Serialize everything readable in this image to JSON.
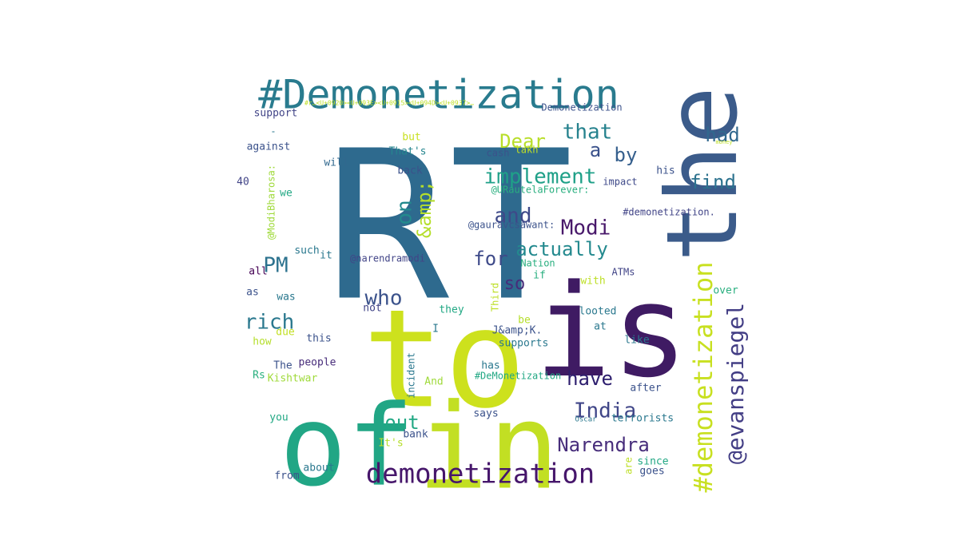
{
  "word_cloud": {
    "words": [
      {
        "text": "RT",
        "color": "#2e6a8e"
      },
      {
        "text": "the",
        "color": "#3b5b8a"
      },
      {
        "text": "to",
        "color": "#cde11d"
      },
      {
        "text": "is",
        "color": "#3f1b63"
      },
      {
        "text": "of",
        "color": "#21a685"
      },
      {
        "text": "in",
        "color": "#c2df23"
      },
      {
        "text": "#Demonetization",
        "color": "#297b8e"
      },
      {
        "text": "demonetization",
        "color": "#46166b"
      },
      {
        "text": "#demonetization",
        "color": "#c8e020"
      },
      {
        "text": "@evanspiegel",
        "color": "#433e85"
      },
      {
        "text": "that",
        "color": "#26828e"
      },
      {
        "text": "Dear",
        "color": "#b8de29"
      },
      {
        "text": "implement",
        "color": "#1fa088"
      },
      {
        "text": "and",
        "color": "#3e4989"
      },
      {
        "text": "Modi",
        "color": "#48186a"
      },
      {
        "text": "actually",
        "color": "#23898e"
      },
      {
        "text": "India",
        "color": "#404688"
      },
      {
        "text": "Narendra",
        "color": "#472d7b"
      },
      {
        "text": "had",
        "color": "#31688e"
      },
      {
        "text": "find",
        "color": "#2c728e"
      },
      {
        "text": "by",
        "color": "#355f8d"
      },
      {
        "text": "a",
        "color": "#3b528b"
      },
      {
        "text": "on",
        "color": "#238a8d"
      },
      {
        "text": "&amp;",
        "color": "#b5de2b"
      },
      {
        "text": "PM",
        "color": "#2c728e"
      },
      {
        "text": "who",
        "color": "#3b528b"
      },
      {
        "text": "rich",
        "color": "#2a788e"
      },
      {
        "text": "for",
        "color": "#3e4a89"
      },
      {
        "text": "so",
        "color": "#472c7a"
      },
      {
        "text": "have",
        "color": "#2d1e6e"
      },
      {
        "text": "out",
        "color": "#22a884"
      },
      {
        "text": "support",
        "color": "#414487"
      },
      {
        "text": "Demonetization",
        "color": "#3b528b"
      },
      {
        "text": "against",
        "color": "#3b528b"
      },
      {
        "text": "but",
        "color": "#c8e020"
      },
      {
        "text": "That's",
        "color": "#25858e"
      },
      {
        "text": "cash",
        "color": "#3b528b"
      },
      {
        "text": "lakh",
        "color": "#c2df23"
      },
      {
        "text": "will",
        "color": "#31688e"
      },
      {
        "text": "back",
        "color": "#3b528b"
      },
      {
        "text": "@ModiBharosa:",
        "color": "#9fda3a"
      },
      {
        "text": "40",
        "color": "#414487"
      },
      {
        "text": "we",
        "color": "#22a884"
      },
      {
        "text": "@URautelaForever:",
        "color": "#29af7f"
      },
      {
        "text": "impact",
        "color": "#3e4989"
      },
      {
        "text": "his",
        "color": "#3b528b"
      },
      {
        "text": "#demonetization.",
        "color": "#414487"
      },
      {
        "text": "@gauravcsawant:",
        "color": "#3b528b"
      },
      {
        "text": "@narendramodi",
        "color": "#414487"
      },
      {
        "text": "such",
        "color": "#2a788e"
      },
      {
        "text": "it",
        "color": "#2a788e"
      },
      {
        "text": "all",
        "color": "#440154"
      },
      {
        "text": "Nation",
        "color": "#29af7f"
      },
      {
        "text": "if",
        "color": "#29af7f"
      },
      {
        "text": "ATMs",
        "color": "#414487"
      },
      {
        "text": "with",
        "color": "#bddf26"
      },
      {
        "text": "over",
        "color": "#29af7f"
      },
      {
        "text": "as",
        "color": "#3b528b"
      },
      {
        "text": "was",
        "color": "#2a788e"
      },
      {
        "text": "not",
        "color": "#414487"
      },
      {
        "text": "Third",
        "color": "#bddf26"
      },
      {
        "text": "they",
        "color": "#22a884"
      },
      {
        "text": "looted",
        "color": "#2a788e"
      },
      {
        "text": "be",
        "color": "#b5de2b"
      },
      {
        "text": "I",
        "color": "#2a788e"
      },
      {
        "text": "J&amp;K.",
        "color": "#3b528b"
      },
      {
        "text": "at",
        "color": "#2a788e"
      },
      {
        "text": "due",
        "color": "#c2df23"
      },
      {
        "text": "this",
        "color": "#3b528b"
      },
      {
        "text": "supports",
        "color": "#2a788e"
      },
      {
        "text": "like",
        "color": "#2a788e"
      },
      {
        "text": "how",
        "color": "#b5de2b"
      },
      {
        "text": "people",
        "color": "#472c7a"
      },
      {
        "text": "The",
        "color": "#3b528b"
      },
      {
        "text": "has",
        "color": "#2a788e"
      },
      {
        "text": "Rs",
        "color": "#29af7f"
      },
      {
        "text": "Kishtwar",
        "color": "#9fda3a"
      },
      {
        "text": "incident",
        "color": "#2a788e"
      },
      {
        "text": "#DeMonetization",
        "color": "#22a884"
      },
      {
        "text": "And",
        "color": "#9fda3a"
      },
      {
        "text": "after",
        "color": "#3b528b"
      },
      {
        "text": "you",
        "color": "#22a884"
      },
      {
        "text": "says",
        "color": "#3b528b"
      },
      {
        "text": "Oscar",
        "color": "#2a788e"
      },
      {
        "text": "terrorists",
        "color": "#2a788e"
      },
      {
        "text": "It's",
        "color": "#b5de2b"
      },
      {
        "text": "bank",
        "color": "#3b528b"
      },
      {
        "text": "are",
        "color": "#bddf26"
      },
      {
        "text": "since",
        "color": "#22a884"
      },
      {
        "text": "goes",
        "color": "#3b528b"
      },
      {
        "text": "about",
        "color": "#2a788e"
      },
      {
        "text": "from",
        "color": "#3b528b"
      },
      {
        "text": "money",
        "color": "#bddf26"
      },
      {
        "text": "-",
        "color": "#2a788e"
      },
      {
        "text": "#r…<U+0920><U+093E><U+0915><U+094D><U+0937>…",
        "color": "#bddf26"
      }
    ]
  }
}
